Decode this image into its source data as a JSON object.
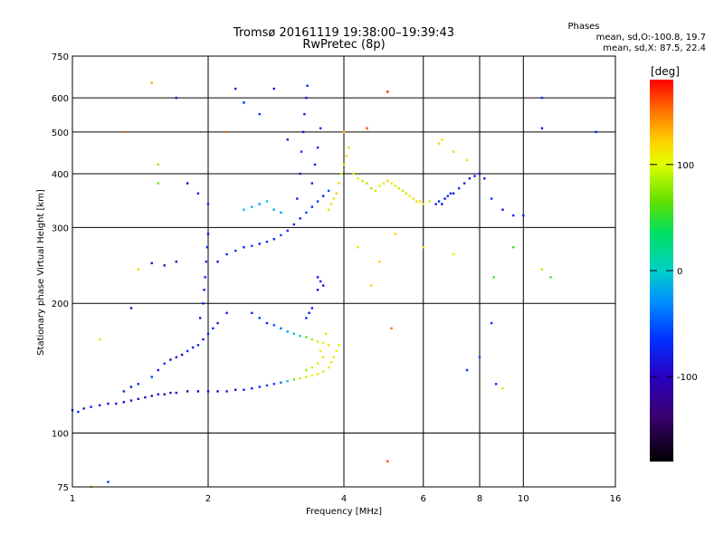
{
  "chart_data": {
    "type": "scatter",
    "title": "Tromsø 20161119 19:38:00–19:39:43",
    "subtitle": "RwPretec (8p)",
    "xlabel": "Frequency [MHz]",
    "ylabel": "Stationary phase Virtual Height [km]",
    "x_scale": "log",
    "y_scale": "log",
    "xlim": [
      1,
      16
    ],
    "ylim": [
      75,
      750
    ],
    "x_ticks": [
      1,
      2,
      4,
      6,
      8,
      10,
      16
    ],
    "x_tick_labels": [
      "1",
      "2",
      "4",
      "6",
      "8",
      "10",
      "16"
    ],
    "y_ticks": [
      75,
      100,
      200,
      300,
      400,
      500,
      600,
      750
    ],
    "y_tick_labels": [
      "75",
      "100",
      "200",
      "300",
      "400",
      "500",
      "600",
      "750"
    ],
    "grid": true,
    "stats": {
      "heading": "Phases",
      "line1": "mean, sd,O:-100.8, 19.7",
      "line2": "mean, sd,X:  87.5, 22.4"
    },
    "colorbar": {
      "label": "[deg]",
      "ticks": [
        "100",
        "0",
        "-100"
      ],
      "tick_values": [
        100,
        0,
        -100
      ],
      "range": [
        -180,
        180
      ],
      "colormap": "rainbow (black-purple-blue-cyan-green-yellow-orange-red)"
    },
    "points": [
      [
        1.0,
        113,
        -110
      ],
      [
        1.03,
        112,
        -100
      ],
      [
        1.06,
        114,
        -110
      ],
      [
        1.1,
        115,
        -105
      ],
      [
        1.15,
        116,
        -110
      ],
      [
        1.2,
        117,
        -115
      ],
      [
        1.25,
        117,
        -110
      ],
      [
        1.3,
        118,
        -120
      ],
      [
        1.35,
        119,
        -115
      ],
      [
        1.4,
        120,
        -120
      ],
      [
        1.45,
        121,
        -125
      ],
      [
        1.5,
        122,
        -120
      ],
      [
        1.55,
        123,
        -125
      ],
      [
        1.6,
        123,
        -130
      ],
      [
        1.65,
        124,
        -125
      ],
      [
        1.7,
        124,
        -120
      ],
      [
        1.8,
        125,
        -125
      ],
      [
        1.9,
        125,
        -120
      ],
      [
        2.0,
        125,
        -115
      ],
      [
        2.1,
        125,
        -120
      ],
      [
        2.2,
        125,
        -110
      ],
      [
        2.3,
        126,
        -115
      ],
      [
        2.4,
        126,
        -110
      ],
      [
        2.5,
        127,
        -105
      ],
      [
        2.6,
        128,
        -100
      ],
      [
        2.7,
        129,
        -95
      ],
      [
        2.8,
        130,
        -95
      ],
      [
        2.9,
        131,
        -80
      ],
      [
        3.0,
        132,
        -40
      ],
      [
        3.1,
        133,
        40
      ],
      [
        3.2,
        134,
        70
      ],
      [
        3.3,
        135,
        80
      ],
      [
        3.4,
        136,
        90
      ],
      [
        3.5,
        137,
        95
      ],
      [
        3.6,
        139,
        100
      ],
      [
        3.7,
        142,
        105
      ],
      [
        3.75,
        146,
        100
      ],
      [
        3.8,
        150,
        95
      ],
      [
        3.85,
        155,
        90
      ],
      [
        3.9,
        160,
        85
      ],
      [
        1.3,
        125,
        -100
      ],
      [
        1.35,
        128,
        -110
      ],
      [
        1.4,
        130,
        -100
      ],
      [
        1.5,
        135,
        -95
      ],
      [
        1.55,
        140,
        -110
      ],
      [
        1.6,
        145,
        -100
      ],
      [
        1.65,
        148,
        -120
      ],
      [
        1.7,
        150,
        -110
      ],
      [
        1.75,
        152,
        -115
      ],
      [
        1.8,
        155,
        -100
      ],
      [
        1.85,
        158,
        -110
      ],
      [
        1.9,
        160,
        -105
      ],
      [
        1.95,
        165,
        -110
      ],
      [
        2.0,
        170,
        -105
      ],
      [
        2.05,
        175,
        -100
      ],
      [
        2.1,
        180,
        -110
      ],
      [
        2.2,
        190,
        -105
      ],
      [
        1.92,
        185,
        -110
      ],
      [
        1.95,
        200,
        -100
      ],
      [
        1.96,
        215,
        -110
      ],
      [
        1.97,
        230,
        -105
      ],
      [
        1.98,
        250,
        -110
      ],
      [
        1.99,
        270,
        -100
      ],
      [
        2.0,
        290,
        -115
      ],
      [
        2.5,
        190,
        -100
      ],
      [
        2.6,
        185,
        -95
      ],
      [
        2.7,
        180,
        -100
      ],
      [
        2.8,
        178,
        -90
      ],
      [
        2.9,
        175,
        -80
      ],
      [
        3.0,
        172,
        -60
      ],
      [
        3.1,
        170,
        -40
      ],
      [
        3.2,
        168,
        -20
      ],
      [
        3.3,
        167,
        30
      ],
      [
        3.4,
        165,
        60
      ],
      [
        3.5,
        163,
        80
      ],
      [
        3.6,
        162,
        90
      ],
      [
        3.7,
        160,
        100
      ],
      [
        3.3,
        185,
        -100
      ],
      [
        3.35,
        190,
        -110
      ],
      [
        3.4,
        195,
        -105
      ],
      [
        3.3,
        140,
        60
      ],
      [
        3.4,
        142,
        80
      ],
      [
        3.5,
        145,
        95
      ],
      [
        3.6,
        150,
        100
      ],
      [
        3.55,
        155,
        90
      ],
      [
        3.65,
        170,
        100
      ],
      [
        3.5,
        230,
        -110
      ],
      [
        3.55,
        225,
        -105
      ],
      [
        3.6,
        220,
        -115
      ],
      [
        3.5,
        215,
        -110
      ],
      [
        2.2,
        260,
        -100
      ],
      [
        2.3,
        265,
        -95
      ],
      [
        2.4,
        270,
        -100
      ],
      [
        2.5,
        272,
        -90
      ],
      [
        2.6,
        275,
        -100
      ],
      [
        2.7,
        278,
        -95
      ],
      [
        2.8,
        282,
        -100
      ],
      [
        2.9,
        288,
        -90
      ],
      [
        3.0,
        295,
        -100
      ],
      [
        3.1,
        305,
        -105
      ],
      [
        3.2,
        315,
        -100
      ],
      [
        3.3,
        325,
        -95
      ],
      [
        3.4,
        335,
        -100
      ],
      [
        3.5,
        345,
        -95
      ],
      [
        3.6,
        355,
        -100
      ],
      [
        3.7,
        365,
        -90
      ],
      [
        3.15,
        350,
        -105
      ],
      [
        3.2,
        400,
        -110
      ],
      [
        3.22,
        450,
        -100
      ],
      [
        3.25,
        500,
        -110
      ],
      [
        3.27,
        550,
        -105
      ],
      [
        3.3,
        600,
        -110
      ],
      [
        3.32,
        640,
        -100
      ],
      [
        3.4,
        380,
        -105
      ],
      [
        3.45,
        420,
        -100
      ],
      [
        3.5,
        460,
        -110
      ],
      [
        3.55,
        510,
        -100
      ],
      [
        2.6,
        340,
        -60
      ],
      [
        2.7,
        345,
        -40
      ],
      [
        2.8,
        330,
        -50
      ],
      [
        2.9,
        325,
        -70
      ],
      [
        2.5,
        335,
        -50
      ],
      [
        2.4,
        330,
        -45
      ],
      [
        2.0,
        340,
        -100
      ],
      [
        1.8,
        380,
        -110
      ],
      [
        1.9,
        360,
        -105
      ],
      [
        2.1,
        250,
        -110
      ],
      [
        1.7,
        250,
        -120
      ],
      [
        1.6,
        245,
        -125
      ],
      [
        1.5,
        248,
        -115
      ],
      [
        3.7,
        330,
        100
      ],
      [
        3.75,
        340,
        110
      ],
      [
        3.8,
        350,
        105
      ],
      [
        3.85,
        360,
        115
      ],
      [
        3.9,
        380,
        110
      ],
      [
        3.95,
        400,
        105
      ],
      [
        4.0,
        420,
        100
      ],
      [
        4.05,
        440,
        110
      ],
      [
        4.1,
        460,
        105
      ],
      [
        4.0,
        500,
        120
      ],
      [
        4.2,
        400,
        100
      ],
      [
        4.3,
        390,
        90
      ],
      [
        4.4,
        385,
        80
      ],
      [
        4.5,
        380,
        70
      ],
      [
        4.6,
        370,
        60
      ],
      [
        4.7,
        365,
        80
      ],
      [
        4.8,
        375,
        90
      ],
      [
        4.9,
        380,
        100
      ],
      [
        5.0,
        385,
        110
      ],
      [
        5.1,
        380,
        100
      ],
      [
        5.2,
        375,
        90
      ],
      [
        5.3,
        370,
        80
      ],
      [
        5.4,
        365,
        70
      ],
      [
        5.5,
        360,
        80
      ],
      [
        5.6,
        355,
        90
      ],
      [
        5.7,
        350,
        100
      ],
      [
        5.8,
        345,
        110
      ],
      [
        5.9,
        345,
        100
      ],
      [
        6.0,
        340,
        90
      ],
      [
        6.2,
        345,
        80
      ],
      [
        6.4,
        340,
        -110
      ],
      [
        6.5,
        345,
        -100
      ],
      [
        6.6,
        340,
        -110
      ],
      [
        6.7,
        350,
        -105
      ],
      [
        6.8,
        355,
        -100
      ],
      [
        6.9,
        360,
        -110
      ],
      [
        7.0,
        360,
        -105
      ],
      [
        7.2,
        370,
        -100
      ],
      [
        7.4,
        380,
        -110
      ],
      [
        7.6,
        390,
        -105
      ],
      [
        7.8,
        395,
        -100
      ],
      [
        8.0,
        400,
        -110
      ],
      [
        8.2,
        390,
        -105
      ],
      [
        8.5,
        350,
        -100
      ],
      [
        9.0,
        330,
        -110
      ],
      [
        9.5,
        320,
        -100
      ],
      [
        10.0,
        320,
        -105
      ],
      [
        6.5,
        470,
        110
      ],
      [
        6.6,
        480,
        100
      ],
      [
        7.0,
        450,
        110
      ],
      [
        7.5,
        430,
        100
      ],
      [
        1.3,
        500,
        150
      ],
      [
        1.4,
        240,
        120
      ],
      [
        1.5,
        650,
        130
      ],
      [
        1.55,
        380,
        40
      ],
      [
        1.55,
        420,
        60
      ],
      [
        1.7,
        600,
        -120
      ],
      [
        2.2,
        500,
        150
      ],
      [
        2.3,
        630,
        -110
      ],
      [
        2.4,
        585,
        -100
      ],
      [
        2.6,
        550,
        -100
      ],
      [
        2.8,
        630,
        -110
      ],
      [
        3.0,
        480,
        -120
      ],
      [
        5.0,
        620,
        170
      ],
      [
        4.5,
        510,
        160
      ],
      [
        4.3,
        270,
        100
      ],
      [
        4.6,
        220,
        110
      ],
      [
        4.8,
        250,
        120
      ],
      [
        5.0,
        86,
        160
      ],
      [
        5.1,
        175,
        150
      ],
      [
        5.2,
        290,
        120
      ],
      [
        6.0,
        270,
        110
      ],
      [
        7.0,
        260,
        100
      ],
      [
        7.5,
        140,
        -100
      ],
      [
        8.0,
        150,
        -90
      ],
      [
        8.5,
        180,
        -100
      ],
      [
        8.6,
        230,
        20
      ],
      [
        8.7,
        130,
        -100
      ],
      [
        9.0,
        127,
        90
      ],
      [
        9.5,
        270,
        20
      ],
      [
        11.0,
        600,
        -100
      ],
      [
        11.0,
        510,
        -110
      ],
      [
        11.0,
        240,
        70
      ],
      [
        11.5,
        230,
        20
      ],
      [
        14.5,
        500,
        -100
      ],
      [
        1.1,
        75,
        50
      ],
      [
        1.2,
        77,
        -100
      ],
      [
        1.15,
        165,
        80
      ],
      [
        1.35,
        195,
        -120
      ]
    ]
  }
}
